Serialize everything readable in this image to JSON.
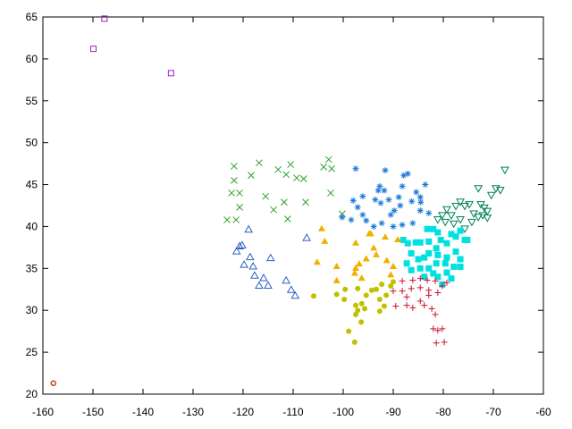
{
  "chart_data": {
    "type": "scatter",
    "xlim": [
      -160,
      -60
    ],
    "xticks": [
      -160,
      -150,
      -140,
      -130,
      -120,
      -110,
      -100,
      -90,
      -80,
      -70,
      -60
    ],
    "ylim": [
      20,
      65
    ],
    "yticks": [
      20,
      25,
      30,
      35,
      40,
      45,
      50,
      55,
      60,
      65
    ],
    "grid": false,
    "series": [
      {
        "color": "#a020c8",
        "marker": "open-square",
        "x": [
          -147.7,
          -149.9,
          -134.4
        ],
        "values": [
          64.8,
          61.2,
          58.3
        ]
      },
      {
        "color": "#c04810",
        "marker": "open-circle",
        "x": [
          -157.9
        ],
        "values": [
          21.3
        ]
      },
      {
        "color": "#2f5fc0",
        "marker": "open-triangle",
        "x": [
          -118.9,
          -120.7,
          -121.3,
          -120.2,
          -119.8,
          -118.6,
          -118.0,
          -117.7,
          -116.8,
          -115.9,
          -115.0,
          -114.5,
          -111.4,
          -110.4,
          -109.6,
          -107.3
        ],
        "values": [
          39.6,
          37.6,
          37.0,
          37.7,
          35.4,
          36.3,
          35.2,
          34.1,
          32.9,
          33.8,
          32.9,
          36.2,
          33.5,
          32.4,
          31.7,
          38.6
        ]
      },
      {
        "color": "#2ca02c",
        "marker": "cross",
        "x": [
          -121.8,
          -121.8,
          -122.3,
          -120.7,
          -123.2,
          -121.4,
          -120.7,
          -118.4,
          -116.8,
          -115.5,
          -113.9,
          -113.0,
          -111.8,
          -111.4,
          -111.1,
          -110.5,
          -109.3,
          -107.9,
          -107.5,
          -103.9,
          -102.9,
          -102.3,
          -102.5,
          -100.2
        ],
        "values": [
          47.2,
          45.5,
          44.0,
          44.0,
          40.8,
          40.8,
          42.3,
          46.1,
          47.6,
          43.6,
          42.0,
          46.8,
          42.9,
          46.2,
          40.9,
          47.4,
          45.8,
          45.7,
          42.9,
          47.1,
          48.0,
          46.9,
          44.0,
          41.5
        ]
      },
      {
        "color": "#1a78d8",
        "marker": "asterisk",
        "x": [
          -97.5,
          -96.1,
          -98.0,
          -97.1,
          -96.1,
          -100.2,
          -98.4,
          -95.4,
          -93.6,
          -93.0,
          -92.7,
          -91.6,
          -91.8,
          -90.9,
          -90.5,
          -89.8,
          -88.9,
          -88.2,
          -87.9,
          -88.6,
          -87.1,
          -86.3,
          -85.4,
          -84.6,
          -84.5,
          -83.6,
          -82.9,
          -92.5,
          -93.9,
          -92.3,
          -90.0,
          -88.2,
          -86.1,
          -84.6
        ],
        "values": [
          46.9,
          43.6,
          43.1,
          42.3,
          41.4,
          41.1,
          40.8,
          40.7,
          43.2,
          44.3,
          44.8,
          46.7,
          44.3,
          43.2,
          41.4,
          41.9,
          43.5,
          44.8,
          46.1,
          42.5,
          46.3,
          43.0,
          44.1,
          41.9,
          42.9,
          45.0,
          41.6,
          42.8,
          40.0,
          40.4,
          40.0,
          40.2,
          40.4,
          43.5
        ]
      },
      {
        "color": "#008050",
        "marker": "open-down-triangle",
        "x": [
          -81.1,
          -80.2,
          -79.3,
          -78.4,
          -77.5,
          -76.6,
          -75.7,
          -74.8,
          -73.9,
          -73.0,
          -72.5,
          -72.1,
          -71.8,
          -71.2,
          -70.4,
          -69.5,
          -68.6,
          -67.7,
          -75.7,
          -76.6,
          -77.9,
          -79.6,
          -74.3,
          -73.0,
          -71.2
        ],
        "values": [
          40.9,
          41.4,
          42.1,
          41.4,
          42.5,
          43.0,
          42.5,
          42.7,
          41.6,
          44.6,
          42.7,
          41.4,
          42.3,
          41.9,
          43.8,
          44.6,
          44.4,
          46.8,
          39.8,
          40.9,
          40.4,
          40.6,
          40.6,
          41.2,
          41.1
        ]
      },
      {
        "color": "#00e0e0",
        "marker": "filled-square",
        "x": [
          -88.0,
          -87.1,
          -85.5,
          -84.6,
          -83.2,
          -82.0,
          -81.1,
          -80.5,
          -82.9,
          -81.4,
          -79.3,
          -78.4,
          -77.5,
          -76.6,
          -75.7,
          -75.2,
          -86.4,
          -85.0,
          -83.8,
          -82.9,
          -81.1,
          -79.3,
          -77.5,
          -76.6,
          -87.3,
          -86.4,
          -84.6,
          -82.9,
          -81.4,
          -79.6,
          -77.9,
          -76.6,
          -83.8,
          -81.1,
          -79.3,
          -78.4,
          -80.2,
          -82.0
        ],
        "values": [
          38.4,
          38.0,
          38.1,
          38.1,
          39.7,
          39.7,
          39.3,
          38.4,
          38.2,
          37.4,
          38.0,
          39.1,
          38.8,
          39.5,
          38.4,
          38.4,
          36.8,
          36.1,
          36.3,
          36.8,
          36.6,
          36.3,
          37.0,
          36.1,
          35.6,
          34.8,
          35.0,
          35.0,
          35.6,
          35.6,
          35.2,
          35.2,
          34.0,
          34.0,
          34.5,
          33.8,
          33.1,
          34.4
        ]
      },
      {
        "color": "#f0b000",
        "marker": "filled-triangle",
        "x": [
          -104.3,
          -103.7,
          -105.2,
          -101.3,
          -101.3,
          -97.5,
          -97.5,
          -96.8,
          -97.7,
          -95.4,
          -94.8,
          -93.9,
          -93.4,
          -91.6,
          -91.3,
          -90.0,
          -89.1,
          -90.5,
          -96.3,
          -94.5
        ],
        "values": [
          39.7,
          38.2,
          35.7,
          35.2,
          33.5,
          38.0,
          35.0,
          35.5,
          34.4,
          36.1,
          39.1,
          37.4,
          36.6,
          38.7,
          35.9,
          35.2,
          38.4,
          34.2,
          33.8,
          39.1
        ]
      },
      {
        "color": "#c0c000",
        "marker": "filled-circle",
        "x": [
          -105.9,
          -101.3,
          -99.6,
          -99.8,
          -97.1,
          -97.5,
          -97.5,
          -97.1,
          -98.9,
          -97.7,
          -96.4,
          -95.7,
          -94.3,
          -93.4,
          -92.3,
          -92.7,
          -91.8,
          -92.7,
          -91.4,
          -90.5,
          -90.0,
          -95.4,
          -96.3
        ],
        "values": [
          31.7,
          31.9,
          32.5,
          31.3,
          32.6,
          30.6,
          29.5,
          30.0,
          27.5,
          26.2,
          28.6,
          30.2,
          32.4,
          32.5,
          33.1,
          31.3,
          30.5,
          29.9,
          31.8,
          32.9,
          33.4,
          31.8,
          30.8
        ]
      },
      {
        "color": "#d01030",
        "marker": "plus",
        "x": [
          -88.2,
          -86.1,
          -84.6,
          -83.2,
          -81.6,
          -80.2,
          -79.3,
          -90.0,
          -88.2,
          -86.4,
          -84.6,
          -82.9,
          -81.1,
          -89.5,
          -87.3,
          -86.1,
          -84.6,
          -83.8,
          -82.3,
          -81.6,
          -82.0,
          -81.1,
          -80.2,
          -81.4,
          -79.8,
          -82.9,
          -87.3
        ],
        "values": [
          33.5,
          33.6,
          33.8,
          33.6,
          33.5,
          32.9,
          33.3,
          32.3,
          32.3,
          32.6,
          32.7,
          32.4,
          32.1,
          30.5,
          30.6,
          30.3,
          31.1,
          30.6,
          30.2,
          29.5,
          27.8,
          27.6,
          27.8,
          26.1,
          26.2,
          31.8,
          31.6
        ]
      }
    ]
  }
}
